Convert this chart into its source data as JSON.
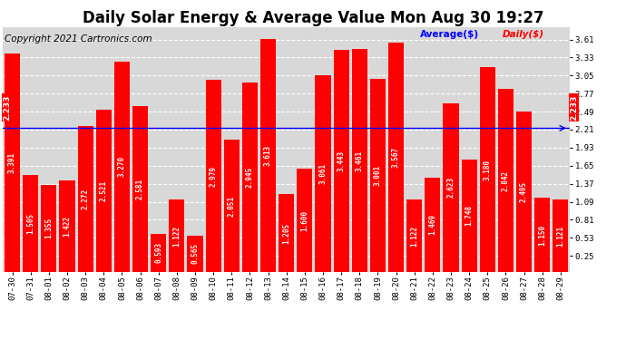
{
  "title": "Daily Solar Energy & Average Value Mon Aug 30 19:27",
  "copyright": "Copyright 2021 Cartronics.com",
  "average_label": "Average($)",
  "daily_label": "Daily($)",
  "average_value": 2.233,
  "categories": [
    "07-30",
    "07-31",
    "08-01",
    "08-02",
    "08-03",
    "08-04",
    "08-05",
    "08-06",
    "08-07",
    "08-08",
    "08-09",
    "08-10",
    "08-11",
    "08-12",
    "08-13",
    "08-14",
    "08-15",
    "08-16",
    "08-17",
    "08-18",
    "08-19",
    "08-20",
    "08-21",
    "08-22",
    "08-23",
    "08-24",
    "08-25",
    "08-26",
    "08-27",
    "08-28",
    "08-29"
  ],
  "values": [
    3.391,
    1.505,
    1.355,
    1.422,
    2.272,
    2.521,
    3.27,
    2.581,
    0.593,
    1.122,
    0.565,
    2.979,
    2.051,
    2.945,
    3.613,
    1.205,
    1.6,
    3.061,
    3.443,
    3.461,
    3.001,
    3.567,
    1.122,
    1.469,
    2.623,
    1.748,
    3.18,
    2.842,
    2.495,
    1.15,
    1.121
  ],
  "bar_color": "#ff0000",
  "avg_line_color": "#0000ff",
  "yticks": [
    0.25,
    0.53,
    0.81,
    1.09,
    1.37,
    1.65,
    1.93,
    2.21,
    2.49,
    2.77,
    3.05,
    3.33,
    3.61
  ],
  "ylim": [
    0.0,
    3.8
  ],
  "plot_bg_color": "#d8d8d8",
  "background_color": "#ffffff",
  "grid_color": "#ffffff",
  "title_fontsize": 12,
  "copyright_fontsize": 7.5,
  "tick_fontsize": 6.5,
  "bar_label_fontsize": 5.5,
  "avg_annotation": "2.233",
  "avg_right_annotation": "2.233"
}
